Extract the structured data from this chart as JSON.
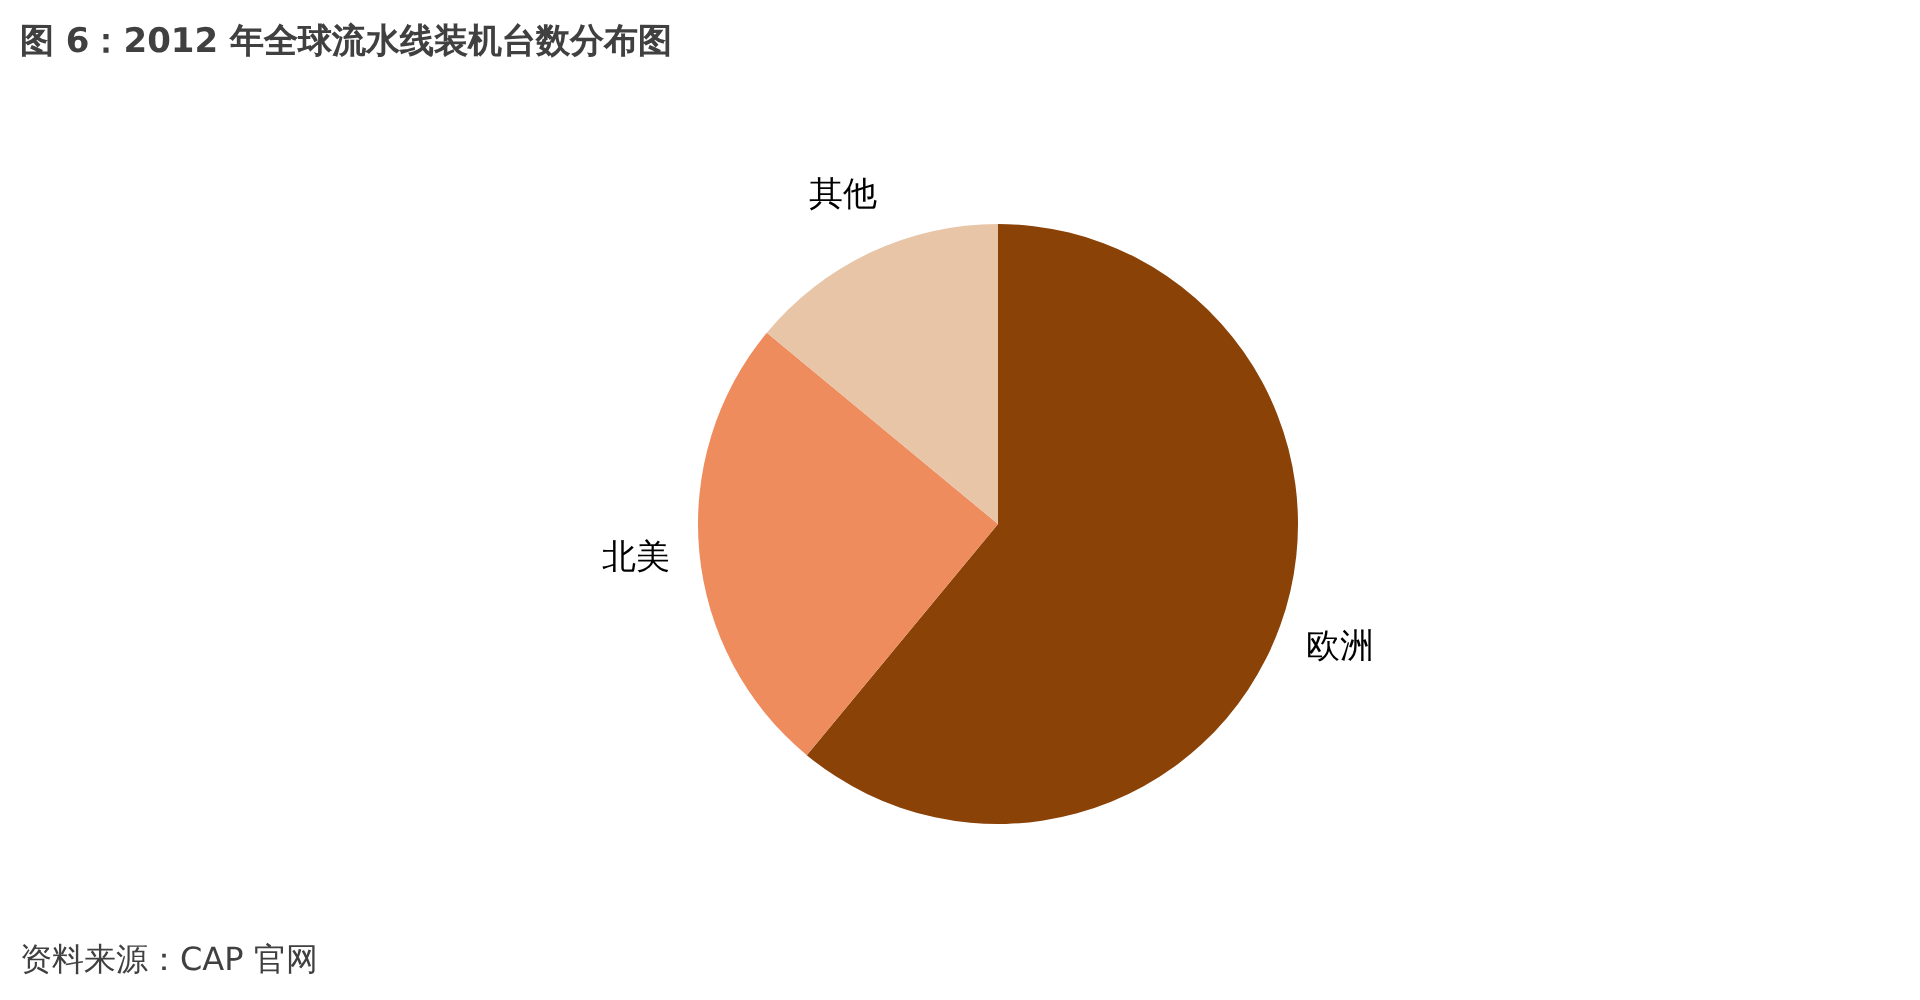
{
  "chart_data": {
    "type": "pie",
    "title": "图 6：2012 年全球流水线装机台数分布图",
    "categories": [
      "欧洲",
      "北美",
      "其他"
    ],
    "values": [
      61,
      25,
      14
    ],
    "colors": [
      "#8b4207",
      "#ee8c5e",
      "#e8c5a6"
    ],
    "legend": false,
    "annotations": [
      "资料来源：CAP 官网"
    ]
  }
}
